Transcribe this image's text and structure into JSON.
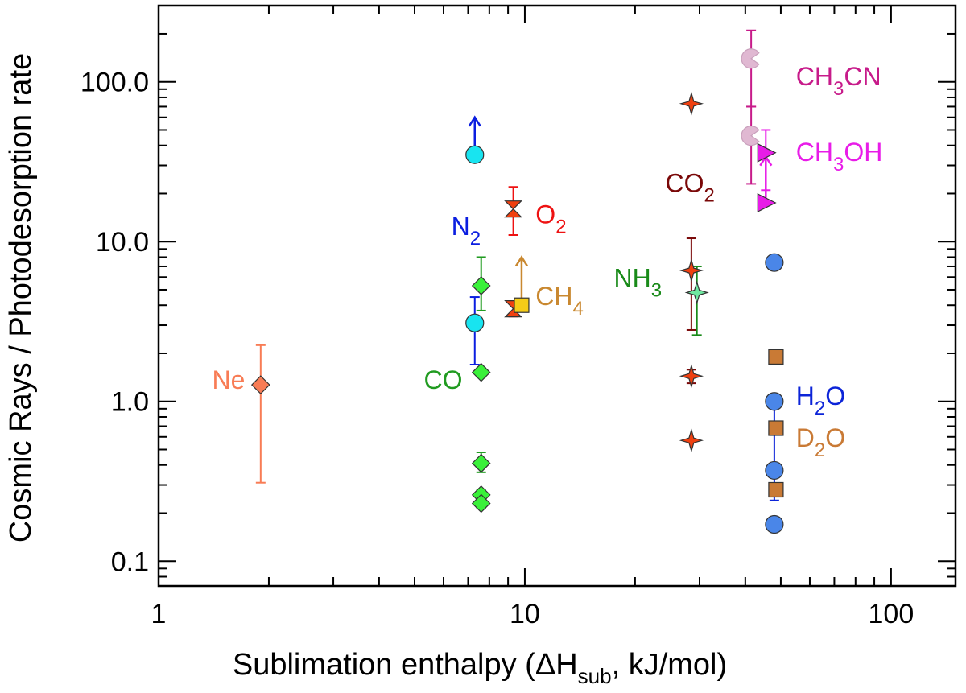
{
  "chart_data": {
    "type": "scatter",
    "title": "",
    "xlabel": {
      "main": "Sublimation enthalpy (ΔH",
      "sub": "sub",
      "tail": ", kJ/mol)"
    },
    "ylabel": "Cosmic Rays / Photodesorption rate",
    "xscale": "log",
    "yscale": "log",
    "xlim": [
      1,
      150
    ],
    "ylim": [
      0.07,
      300
    ],
    "xticks": [
      {
        "v": 1,
        "label": "1"
      },
      {
        "v": 10,
        "label": "10"
      },
      {
        "v": 100,
        "label": "100"
      }
    ],
    "yticks": [
      {
        "v": 0.1,
        "label": "0.1"
      },
      {
        "v": 1,
        "label": "1.0"
      },
      {
        "v": 10,
        "label": "10.0"
      },
      {
        "v": 100,
        "label": "100.0"
      }
    ],
    "species": [
      {
        "id": "ne",
        "label": [
          {
            "t": "Ne"
          }
        ],
        "label_at": [
          1.4,
          1.2
        ],
        "color": "#f87c55",
        "points": [
          {
            "x": 1.9,
            "y": 1.27,
            "marker": "diamond",
            "fill": "#f87c55",
            "err": [
              0.31,
              2.25
            ]
          }
        ]
      },
      {
        "id": "co",
        "label": [
          {
            "t": "CO"
          }
        ],
        "label_at": [
          5.3,
          1.2
        ],
        "color": "#219b21",
        "points": [
          {
            "x": 7.6,
            "y": 5.3,
            "marker": "diamond",
            "fill": "#3af03a",
            "err": [
              3.7,
              8.0
            ]
          },
          {
            "x": 7.6,
            "y": 1.52,
            "marker": "diamond",
            "fill": "#3af03a",
            "err": [
              1.42,
              1.62
            ]
          },
          {
            "x": 7.6,
            "y": 0.41,
            "marker": "diamond",
            "fill": "#3af03a",
            "err": [
              0.36,
              0.48
            ]
          },
          {
            "x": 7.6,
            "y": 0.26,
            "marker": "diamond",
            "fill": "#3af03a",
            "err": [
              0.24,
              0.28
            ]
          },
          {
            "x": 7.6,
            "y": 0.23,
            "marker": "diamond",
            "fill": "#3af03a",
            "err": [
              0.215,
              0.245
            ]
          }
        ]
      },
      {
        "id": "n2",
        "label": [
          {
            "t": "N"
          },
          {
            "t": "2",
            "sub": true
          }
        ],
        "label_at": [
          6.3,
          11.0
        ],
        "color": "#0b1ee0",
        "points": [
          {
            "x": 7.3,
            "y": 35,
            "marker": "circle",
            "fill": "#18e4f0",
            "limit": "up",
            "limit_to": 60
          },
          {
            "x": 7.3,
            "y": 3.1,
            "marker": "circle",
            "fill": "#18e4f0",
            "err": [
              1.7,
              4.5
            ]
          }
        ]
      },
      {
        "id": "o2",
        "label": [
          {
            "t": "O"
          },
          {
            "t": "2",
            "sub": true
          }
        ],
        "label_at": [
          10.7,
          13.0
        ],
        "color": "#ee1212",
        "points": [
          {
            "x": 9.3,
            "y": 16,
            "marker": "hourglass",
            "fill": "#f04010",
            "err": [
              11,
              22
            ]
          },
          {
            "x": 9.3,
            "y": 3.8,
            "marker": "hourglass",
            "fill": "#f04010",
            "err": [
              3.4,
              4.2
            ]
          }
        ]
      },
      {
        "id": "ch4",
        "label": [
          {
            "t": "CH"
          },
          {
            "t": "4",
            "sub": true
          }
        ],
        "label_at": [
          10.7,
          4.0
        ],
        "color": "#c98830",
        "points": [
          {
            "x": 9.8,
            "y": 4.0,
            "marker": "square",
            "fill": "#f5cc18",
            "limit": "up",
            "limit_to": 8.0
          }
        ]
      },
      {
        "id": "nh3",
        "label": [
          {
            "t": "NH"
          },
          {
            "t": "3",
            "sub": true
          }
        ],
        "label_at": [
          17.5,
          5.2
        ],
        "color": "#198a19",
        "points": [
          {
            "x": 29.5,
            "y": 4.8,
            "marker": "star",
            "fill": "#6fe8a0",
            "err": [
              2.6,
              7.0
            ]
          }
        ]
      },
      {
        "id": "co2",
        "label": [
          {
            "t": "CO"
          },
          {
            "t": "2",
            "sub": true
          }
        ],
        "label_at": [
          24.2,
          20.5
        ],
        "color": "#7a0808",
        "points": [
          {
            "x": 28.5,
            "y": 73,
            "marker": "star",
            "fill": "#f04010"
          },
          {
            "x": 28.5,
            "y": 6.6,
            "marker": "star",
            "fill": "#f04010",
            "err": [
              2.8,
              10.5
            ]
          },
          {
            "x": 28.5,
            "y": 1.44,
            "marker": "star",
            "fill": "#f04010",
            "err": [
              1.3,
              1.58
            ]
          },
          {
            "x": 28.5,
            "y": 0.57,
            "marker": "star",
            "fill": "#f04010"
          }
        ]
      },
      {
        "id": "ch3cn",
        "label": [
          {
            "t": "CH"
          },
          {
            "t": "3",
            "sub": true
          },
          {
            "t": "CN"
          }
        ],
        "label_at": [
          55,
          95
        ],
        "color": "#c71b8a",
        "points": [
          {
            "x": 41.5,
            "y": 140,
            "marker": "pacman",
            "fill": "#e0b8d2",
            "err": [
              70,
              210
            ]
          },
          {
            "x": 41.5,
            "y": 46,
            "marker": "pacman",
            "fill": "#e0b8d2",
            "err": [
              23,
              70
            ]
          }
        ]
      },
      {
        "id": "ch3oh",
        "label": [
          {
            "t": "CH"
          },
          {
            "t": "3",
            "sub": true
          },
          {
            "t": "OH"
          }
        ],
        "label_at": [
          55,
          32
        ],
        "color": "#e81ce8",
        "points": [
          {
            "x": 45.5,
            "y": 36,
            "marker": "triangle-right",
            "fill": "#e81ce8",
            "err": [
              21,
              50
            ]
          },
          {
            "x": 45.5,
            "y": 17.5,
            "marker": "triangle-right",
            "fill": "#e81ce8",
            "limit": "up",
            "limit_to": 34
          }
        ]
      },
      {
        "id": "h2o",
        "label": [
          {
            "t": "H"
          },
          {
            "t": "2",
            "sub": true
          },
          {
            "t": "O"
          }
        ],
        "label_at": [
          55,
          0.95
        ],
        "color": "#0c24d8",
        "points": [
          {
            "x": 48,
            "y": 7.4,
            "marker": "circle",
            "fill": "#4a86e8"
          },
          {
            "x": 48,
            "y": 1.0,
            "marker": "circle",
            "fill": "#4a86e8"
          },
          {
            "x": 48,
            "y": 0.37,
            "marker": "circle",
            "fill": "#4a86e8",
            "err": [
              0.24,
              0.92
            ]
          },
          {
            "x": 48,
            "y": 0.17,
            "marker": "circle",
            "fill": "#4a86e8"
          }
        ]
      },
      {
        "id": "d2o",
        "label": [
          {
            "t": "D"
          },
          {
            "t": "2",
            "sub": true
          },
          {
            "t": "O"
          }
        ],
        "label_at": [
          55,
          0.52
        ],
        "color": "#c97a35",
        "points": [
          {
            "x": 48.5,
            "y": 1.9,
            "marker": "square",
            "fill": "#c97a35"
          },
          {
            "x": 48.5,
            "y": 0.68,
            "marker": "square",
            "fill": "#c97a35"
          },
          {
            "x": 48.5,
            "y": 0.28,
            "marker": "square",
            "fill": "#c97a35"
          }
        ]
      }
    ]
  }
}
